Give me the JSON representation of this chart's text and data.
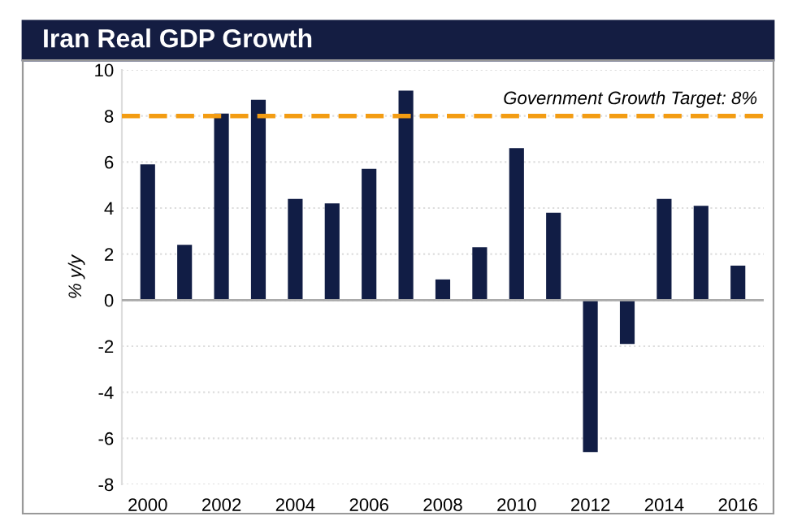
{
  "chart_data": {
    "type": "bar",
    "title": "Iran Real GDP Growth",
    "ylabel": "% y/y",
    "categories": [
      "2000",
      null,
      "2002",
      null,
      "2004",
      null,
      "2006",
      null,
      "2008",
      null,
      "2010",
      null,
      "2012",
      null,
      "2014",
      null,
      "2016"
    ],
    "values": [
      5.9,
      2.4,
      8.1,
      8.7,
      4.4,
      4.2,
      5.7,
      9.1,
      0.9,
      2.3,
      6.6,
      3.8,
      -6.6,
      -1.9,
      4.4,
      4.1,
      1.5
    ],
    "color": "#111d45",
    "ylim": [
      -8,
      10
    ],
    "yticks": [
      -8,
      -6,
      -4,
      -2,
      0,
      2,
      4,
      6,
      8,
      10
    ],
    "grid": "y",
    "ref_lines": [
      {
        "axis": "y",
        "value": 8,
        "label": "Government Growth Target: 8%",
        "color": "#f39c12",
        "line_style": "dashed"
      }
    ]
  }
}
